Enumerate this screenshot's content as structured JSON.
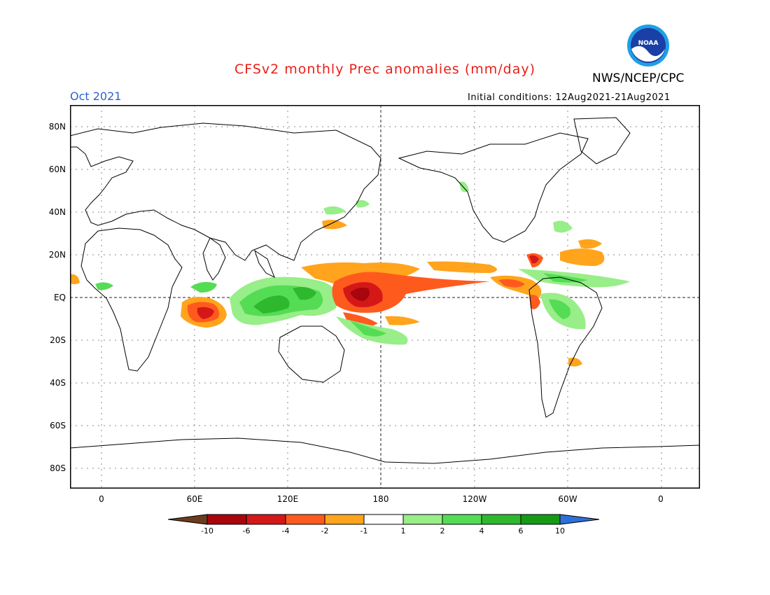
{
  "header": {
    "title": "CFSv2 monthly Prec anomalies (mm/day)",
    "org": "NWS/NCEP/CPC",
    "logo_text": "NOAA",
    "month": "Oct 2021",
    "initial_conditions": "Initial conditions: 12Aug2021-21Aug2021"
  },
  "axes": {
    "lat_labels": [
      "80N",
      "60N",
      "40N",
      "20N",
      "EQ",
      "20S",
      "40S",
      "60S",
      "80S"
    ],
    "lon_labels": [
      "0",
      "60E",
      "120E",
      "180",
      "120W",
      "60W",
      "0"
    ]
  },
  "colorbar": {
    "labels": [
      "-10",
      "-6",
      "-4",
      "-2",
      "-1",
      "1",
      "2",
      "4",
      "6",
      "10"
    ],
    "colors": [
      "#6b3c1e",
      "#a8060c",
      "#d41818",
      "#ff5a1e",
      "#ffa41c",
      "#ffffff",
      "#98ee88",
      "#55dc55",
      "#2eb82e",
      "#169a16",
      "#2f6fd9"
    ]
  },
  "colors": {
    "title": "#e8201a",
    "month": "#2d5fd6",
    "dry_strong": "#d41818",
    "dry_mid": "#ff5a1e",
    "dry_weak": "#ffa41c",
    "wet_weak": "#98ee88",
    "wet_mid": "#55dc55",
    "wet_strong": "#2eb82e"
  }
}
